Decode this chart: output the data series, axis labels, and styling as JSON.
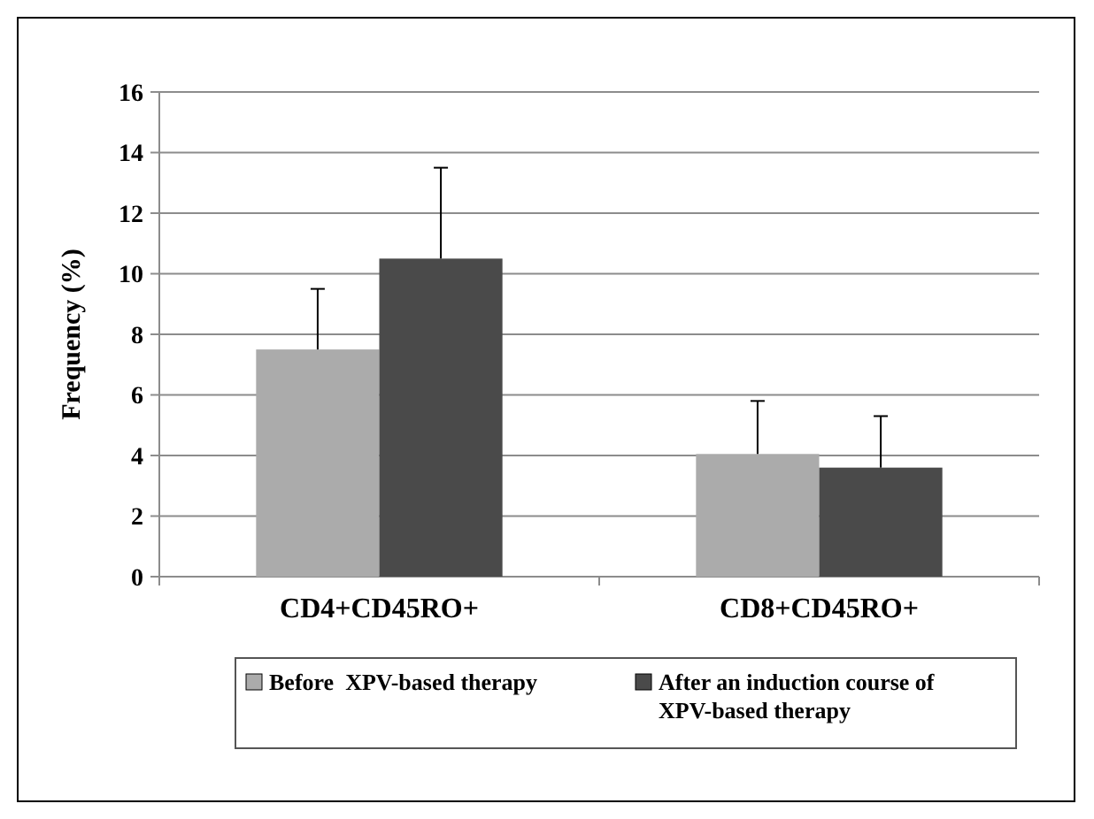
{
  "chart_data": {
    "type": "bar",
    "ylabel": "Frequency (%)",
    "categories": [
      "CD4+CD45RO+",
      "CD8+CD45RO+"
    ],
    "series": [
      {
        "name": "Before  XPV-based therapy",
        "color": "#ababab",
        "values": [
          7.5,
          4.05
        ],
        "errors": [
          [
            7.5,
            9.5
          ],
          [
            4.05,
            5.8
          ]
        ]
      },
      {
        "name": "After an induction course of XPV-based therapy",
        "color": "#4a4a4a",
        "values": [
          10.5,
          3.6
        ],
        "errors": [
          [
            10.5,
            13.5
          ],
          [
            3.6,
            5.3
          ]
        ]
      }
    ],
    "ylim": [
      0,
      16
    ],
    "yticks": [
      0,
      2,
      4,
      6,
      8,
      10,
      12,
      14,
      16
    ],
    "grid": "y",
    "legend": "bottom"
  }
}
